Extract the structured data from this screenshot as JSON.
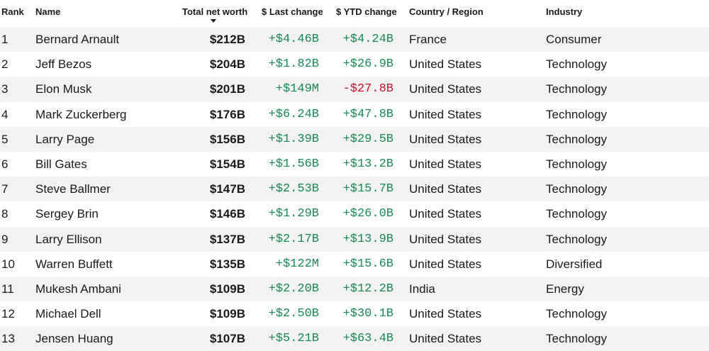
{
  "headers": {
    "rank": "Rank",
    "name": "Name",
    "net_worth": "Total net worth",
    "last_change": "$ Last change",
    "ytd_change": "$ YTD change",
    "country": "Country / Region",
    "industry": "Industry"
  },
  "sort": {
    "column": "Total net worth",
    "direction": "descending"
  },
  "colors": {
    "positive": "#1a8754",
    "negative": "#c8102e",
    "stripe": "#f2f2f2"
  },
  "rows": [
    {
      "rank": "1",
      "name": "Bernard Arnault",
      "net_worth": "$212B",
      "last_change": "+$4.46B",
      "ytd_change": "+$4.24B",
      "country": "France",
      "industry": "Consumer"
    },
    {
      "rank": "2",
      "name": "Jeff Bezos",
      "net_worth": "$204B",
      "last_change": "+$1.82B",
      "ytd_change": "+$26.9B",
      "country": "United States",
      "industry": "Technology"
    },
    {
      "rank": "3",
      "name": "Elon Musk",
      "net_worth": "$201B",
      "last_change": "+$149M",
      "ytd_change": "-$27.8B",
      "country": "United States",
      "industry": "Technology"
    },
    {
      "rank": "4",
      "name": "Mark Zuckerberg",
      "net_worth": "$176B",
      "last_change": "+$6.24B",
      "ytd_change": "+$47.8B",
      "country": "United States",
      "industry": "Technology"
    },
    {
      "rank": "5",
      "name": "Larry Page",
      "net_worth": "$156B",
      "last_change": "+$1.39B",
      "ytd_change": "+$29.5B",
      "country": "United States",
      "industry": "Technology"
    },
    {
      "rank": "6",
      "name": "Bill Gates",
      "net_worth": "$154B",
      "last_change": "+$1.56B",
      "ytd_change": "+$13.2B",
      "country": "United States",
      "industry": "Technology"
    },
    {
      "rank": "7",
      "name": "Steve Ballmer",
      "net_worth": "$147B",
      "last_change": "+$2.53B",
      "ytd_change": "+$15.7B",
      "country": "United States",
      "industry": "Technology"
    },
    {
      "rank": "8",
      "name": "Sergey Brin",
      "net_worth": "$146B",
      "last_change": "+$1.29B",
      "ytd_change": "+$26.0B",
      "country": "United States",
      "industry": "Technology"
    },
    {
      "rank": "9",
      "name": "Larry Ellison",
      "net_worth": "$137B",
      "last_change": "+$2.17B",
      "ytd_change": "+$13.9B",
      "country": "United States",
      "industry": "Technology"
    },
    {
      "rank": "10",
      "name": "Warren Buffett",
      "net_worth": "$135B",
      "last_change": "+$122M",
      "ytd_change": "+$15.6B",
      "country": "United States",
      "industry": "Diversified"
    },
    {
      "rank": "11",
      "name": "Mukesh Ambani",
      "net_worth": "$109B",
      "last_change": "+$2.20B",
      "ytd_change": "+$12.2B",
      "country": "India",
      "industry": "Energy"
    },
    {
      "rank": "12",
      "name": "Michael Dell",
      "net_worth": "$109B",
      "last_change": "+$2.50B",
      "ytd_change": "+$30.1B",
      "country": "United States",
      "industry": "Technology"
    },
    {
      "rank": "13",
      "name": "Jensen Huang",
      "net_worth": "$107B",
      "last_change": "+$5.21B",
      "ytd_change": "+$63.4B",
      "country": "United States",
      "industry": "Technology"
    }
  ]
}
